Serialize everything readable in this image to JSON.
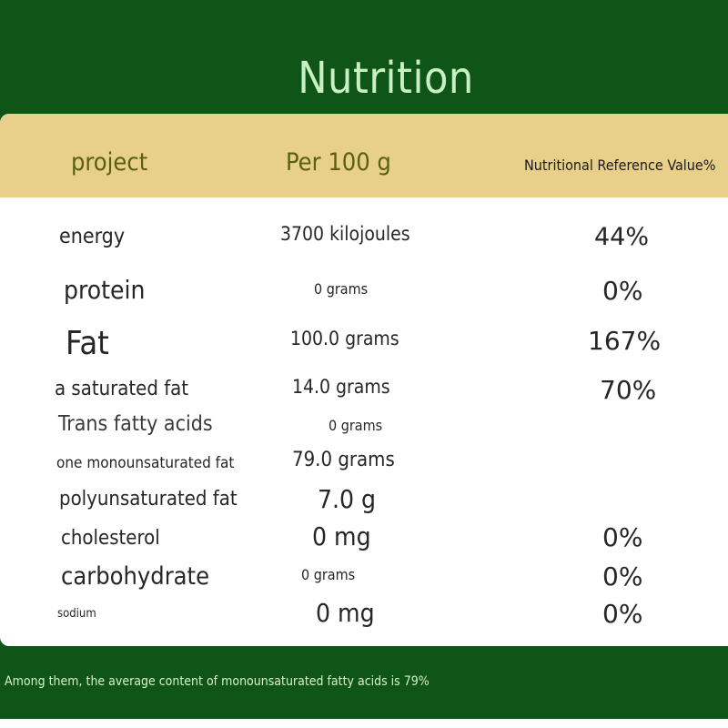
{
  "title": "Nutrition",
  "colors": {
    "frame": "#0f5517",
    "header_band": "#e8d08a",
    "title_text": "#c8f0c2",
    "header_text": "#5b6010"
  },
  "table": {
    "headers": {
      "item": "project",
      "per_100g": "Per 100 g",
      "nrv": "Nutritional Reference Value%"
    },
    "rows": [
      {
        "item": "energy",
        "per_100g": "3700 kilojoules",
        "nrv": "44%"
      },
      {
        "item": "protein",
        "per_100g": "0 grams",
        "nrv": "0%"
      },
      {
        "item": "Fat",
        "per_100g": "100.0 grams",
        "nrv": "167%"
      },
      {
        "item": "a saturated fat",
        "per_100g": "14.0 grams",
        "nrv": "70%"
      },
      {
        "item": "Trans fatty acids",
        "per_100g": "0 grams",
        "nrv": ""
      },
      {
        "item": "one monounsaturated fat",
        "per_100g": "79.0 grams",
        "nrv": ""
      },
      {
        "item": "polyunsaturated fat",
        "per_100g": "7.0 g",
        "nrv": ""
      },
      {
        "item": "cholesterol",
        "per_100g": "0 mg",
        "nrv": "0%"
      },
      {
        "item": "carbohydrate",
        "per_100g": "0 grams",
        "nrv": "0%"
      },
      {
        "item": "sodium",
        "per_100g": "0 mg",
        "nrv": "0%"
      }
    ]
  },
  "footnote": "Among them, the average content of monounsaturated fatty acids is 79%"
}
